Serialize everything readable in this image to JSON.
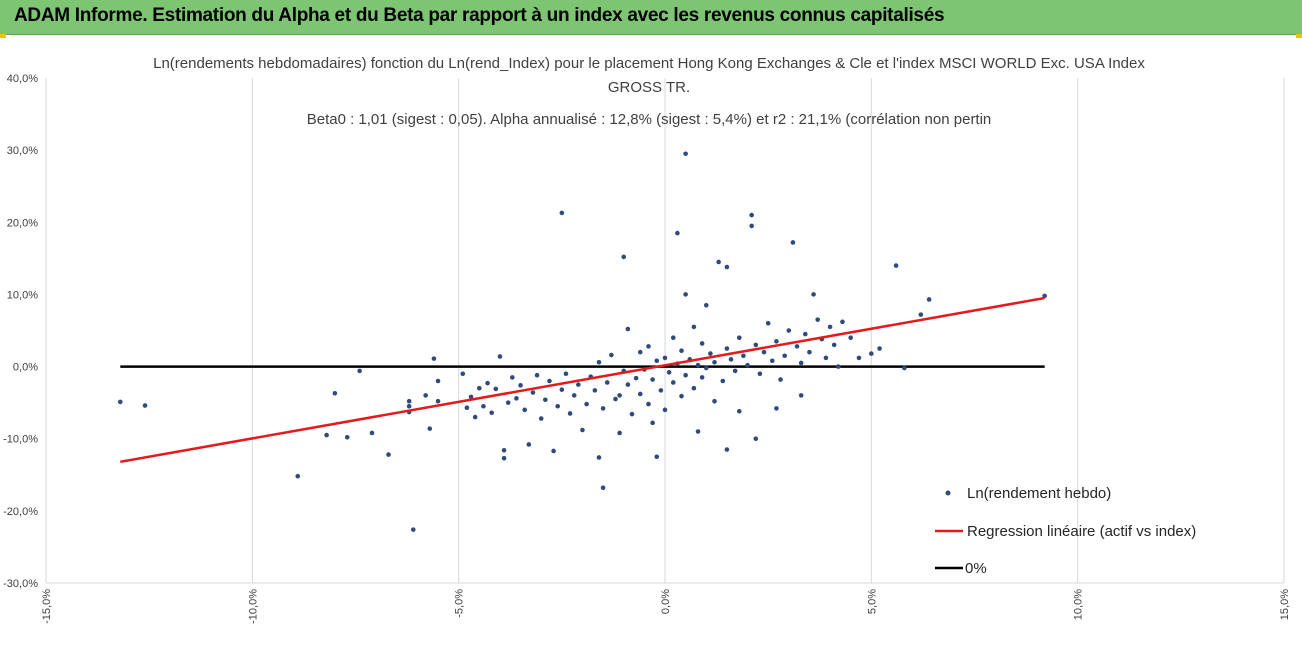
{
  "header": {
    "title": "ADAM Informe. Estimation du Alpha et du Beta par rapport à un index avec les revenus connus capitalisés"
  },
  "colors": {
    "banner": "#7dc473",
    "points": "#2f4b7c",
    "regression": "#e41a1c",
    "zero_line": "#000000",
    "grid": "#d9d9d9"
  },
  "chart_data": {
    "type": "scatter",
    "title_lines": [
      "Ln(rendements hebdomadaires) fonction du Ln(rend_Index) pour le placement Hong Kong Exchanges & Cle et l'index MSCI WORLD Exc. USA Index",
      "GROSS TR.",
      "Beta0 : 1,01 (sigest : 0,05). Alpha annualisé : 12,8% (sigest : 5,4%) et r2 : 21,1% (corrélation non pertin"
    ],
    "xlim": [
      -0.15,
      0.15
    ],
    "ylim": [
      -0.3,
      0.4
    ],
    "x_ticks": [
      -0.15,
      -0.1,
      -0.05,
      0.0,
      0.05,
      0.1,
      0.15
    ],
    "x_tick_labels": [
      "-15,0%",
      "-10,0%",
      "-5,0%",
      "0,0%",
      "5,0%",
      "10,0%",
      "15,0%"
    ],
    "y_ticks": [
      -0.3,
      -0.2,
      -0.1,
      0.0,
      0.1,
      0.2,
      0.3,
      0.4
    ],
    "y_tick_labels": [
      "-30,0%",
      "-20,0%",
      "-10,0%",
      "0,0%",
      "10,0%",
      "20,0%",
      "30,0%",
      "40,0%"
    ],
    "grid": "vertical",
    "legend_position": "bottom-right",
    "series": [
      {
        "name": "Ln(rendement hebdo)",
        "type": "scatter",
        "points": [
          [
            -0.132,
            -0.049
          ],
          [
            -0.126,
            -0.054
          ],
          [
            -0.089,
            -0.152
          ],
          [
            -0.082,
            -0.095
          ],
          [
            -0.08,
            -0.037
          ],
          [
            -0.077,
            -0.098
          ],
          [
            -0.074,
            -0.006
          ],
          [
            -0.071,
            -0.092
          ],
          [
            -0.067,
            -0.122
          ],
          [
            -0.062,
            -0.048
          ],
          [
            -0.062,
            -0.055
          ],
          [
            -0.062,
            -0.063
          ],
          [
            -0.061,
            -0.226
          ],
          [
            -0.058,
            -0.04
          ],
          [
            -0.057,
            -0.086
          ],
          [
            -0.056,
            0.011
          ],
          [
            -0.055,
            -0.048
          ],
          [
            -0.055,
            -0.02
          ],
          [
            -0.049,
            -0.01
          ],
          [
            -0.048,
            -0.057
          ],
          [
            -0.047,
            -0.042
          ],
          [
            -0.046,
            -0.07
          ],
          [
            -0.045,
            -0.03
          ],
          [
            -0.044,
            -0.055
          ],
          [
            -0.043,
            -0.023
          ],
          [
            -0.042,
            -0.064
          ],
          [
            -0.041,
            -0.031
          ],
          [
            -0.04,
            0.014
          ],
          [
            -0.039,
            -0.116
          ],
          [
            -0.039,
            -0.127
          ],
          [
            -0.038,
            -0.05
          ],
          [
            -0.037,
            -0.015
          ],
          [
            -0.036,
            -0.044
          ],
          [
            -0.035,
            -0.026
          ],
          [
            -0.034,
            -0.06
          ],
          [
            -0.033,
            -0.108
          ],
          [
            -0.032,
            -0.036
          ],
          [
            -0.031,
            -0.012
          ],
          [
            -0.03,
            -0.072
          ],
          [
            -0.029,
            -0.046
          ],
          [
            -0.028,
            -0.02
          ],
          [
            -0.027,
            -0.117
          ],
          [
            -0.026,
            -0.055
          ],
          [
            -0.025,
            -0.032
          ],
          [
            -0.024,
            -0.01
          ],
          [
            -0.023,
            -0.065
          ],
          [
            -0.022,
            -0.04
          ],
          [
            -0.021,
            -0.025
          ],
          [
            -0.02,
            -0.088
          ],
          [
            -0.019,
            -0.052
          ],
          [
            -0.018,
            -0.014
          ],
          [
            -0.017,
            -0.033
          ],
          [
            -0.016,
            0.006
          ],
          [
            -0.015,
            -0.058
          ],
          [
            -0.014,
            -0.022
          ],
          [
            -0.013,
            0.016
          ],
          [
            -0.012,
            -0.045
          ],
          [
            -0.011,
            -0.092
          ],
          [
            -0.011,
            -0.04
          ],
          [
            -0.01,
            -0.006
          ],
          [
            -0.009,
            -0.025
          ],
          [
            -0.009,
            0.052
          ],
          [
            -0.008,
            -0.066
          ],
          [
            -0.007,
            -0.016
          ],
          [
            -0.006,
            0.02
          ],
          [
            -0.006,
            -0.038
          ],
          [
            -0.005,
            -0.004
          ],
          [
            -0.004,
            -0.052
          ],
          [
            -0.004,
            0.028
          ],
          [
            -0.003,
            -0.018
          ],
          [
            -0.002,
            -0.125
          ],
          [
            -0.002,
            0.008
          ],
          [
            -0.001,
            -0.033
          ],
          [
            0.0,
            0.012
          ],
          [
            0.0,
            -0.06
          ],
          [
            0.001,
            -0.008
          ],
          [
            0.002,
            0.04
          ],
          [
            0.002,
            -0.022
          ],
          [
            0.003,
            0.004
          ],
          [
            0.004,
            -0.041
          ],
          [
            0.004,
            0.022
          ],
          [
            0.005,
            0.295
          ],
          [
            0.005,
            -0.012
          ],
          [
            0.006,
            0.01
          ],
          [
            0.007,
            -0.03
          ],
          [
            0.007,
            0.055
          ],
          [
            0.008,
            0.002
          ],
          [
            0.009,
            -0.015
          ],
          [
            0.009,
            0.032
          ],
          [
            0.01,
            -0.002
          ],
          [
            0.011,
            0.018
          ],
          [
            0.012,
            -0.048
          ],
          [
            0.012,
            0.006
          ],
          [
            0.013,
            0.145
          ],
          [
            0.014,
            -0.02
          ],
          [
            0.015,
            0.025
          ],
          [
            0.016,
            0.01
          ],
          [
            0.017,
            -0.006
          ],
          [
            0.018,
            0.04
          ],
          [
            0.019,
            0.015
          ],
          [
            0.02,
            0.002
          ],
          [
            0.021,
            0.21
          ],
          [
            0.021,
            0.195
          ],
          [
            0.022,
            0.03
          ],
          [
            0.023,
            -0.01
          ],
          [
            0.024,
            0.02
          ],
          [
            0.025,
            0.06
          ],
          [
            0.026,
            0.008
          ],
          [
            0.027,
            0.035
          ],
          [
            0.028,
            -0.018
          ],
          [
            0.029,
            0.015
          ],
          [
            0.03,
            0.05
          ],
          [
            0.031,
            0.172
          ],
          [
            0.032,
            0.028
          ],
          [
            0.033,
            0.005
          ],
          [
            0.034,
            0.045
          ],
          [
            0.035,
            0.02
          ],
          [
            0.036,
            0.1
          ],
          [
            0.037,
            0.065
          ],
          [
            0.038,
            0.038
          ],
          [
            0.039,
            0.012
          ],
          [
            0.04,
            0.055
          ],
          [
            0.041,
            0.03
          ],
          [
            0.042,
            0.0
          ],
          [
            0.043,
            0.062
          ],
          [
            0.045,
            0.04
          ],
          [
            0.047,
            0.012
          ],
          [
            0.05,
            0.018
          ],
          [
            0.052,
            0.025
          ],
          [
            0.056,
            0.14
          ],
          [
            0.058,
            -0.002
          ],
          [
            0.062,
            0.072
          ],
          [
            0.064,
            0.093
          ],
          [
            0.092,
            0.098
          ],
          [
            -0.025,
            0.213
          ],
          [
            -0.01,
            0.152
          ],
          [
            0.003,
            0.185
          ],
          [
            0.015,
            0.138
          ],
          [
            0.005,
            0.1
          ],
          [
            0.01,
            0.085
          ],
          [
            -0.015,
            -0.168
          ],
          [
            -0.016,
            -0.126
          ],
          [
            0.022,
            -0.1
          ],
          [
            0.015,
            -0.115
          ],
          [
            0.008,
            -0.09
          ],
          [
            -0.003,
            -0.078
          ],
          [
            0.018,
            -0.062
          ],
          [
            0.027,
            -0.058
          ],
          [
            0.033,
            -0.04
          ]
        ]
      },
      {
        "name": "Regression linéaire (actif vs index)",
        "type": "line",
        "points": [
          [
            -0.132,
            -0.132
          ],
          [
            0.092,
            0.095
          ]
        ]
      },
      {
        "name": "0%",
        "type": "line",
        "points": [
          [
            -0.132,
            0.0
          ],
          [
            0.092,
            0.0
          ]
        ]
      }
    ]
  }
}
